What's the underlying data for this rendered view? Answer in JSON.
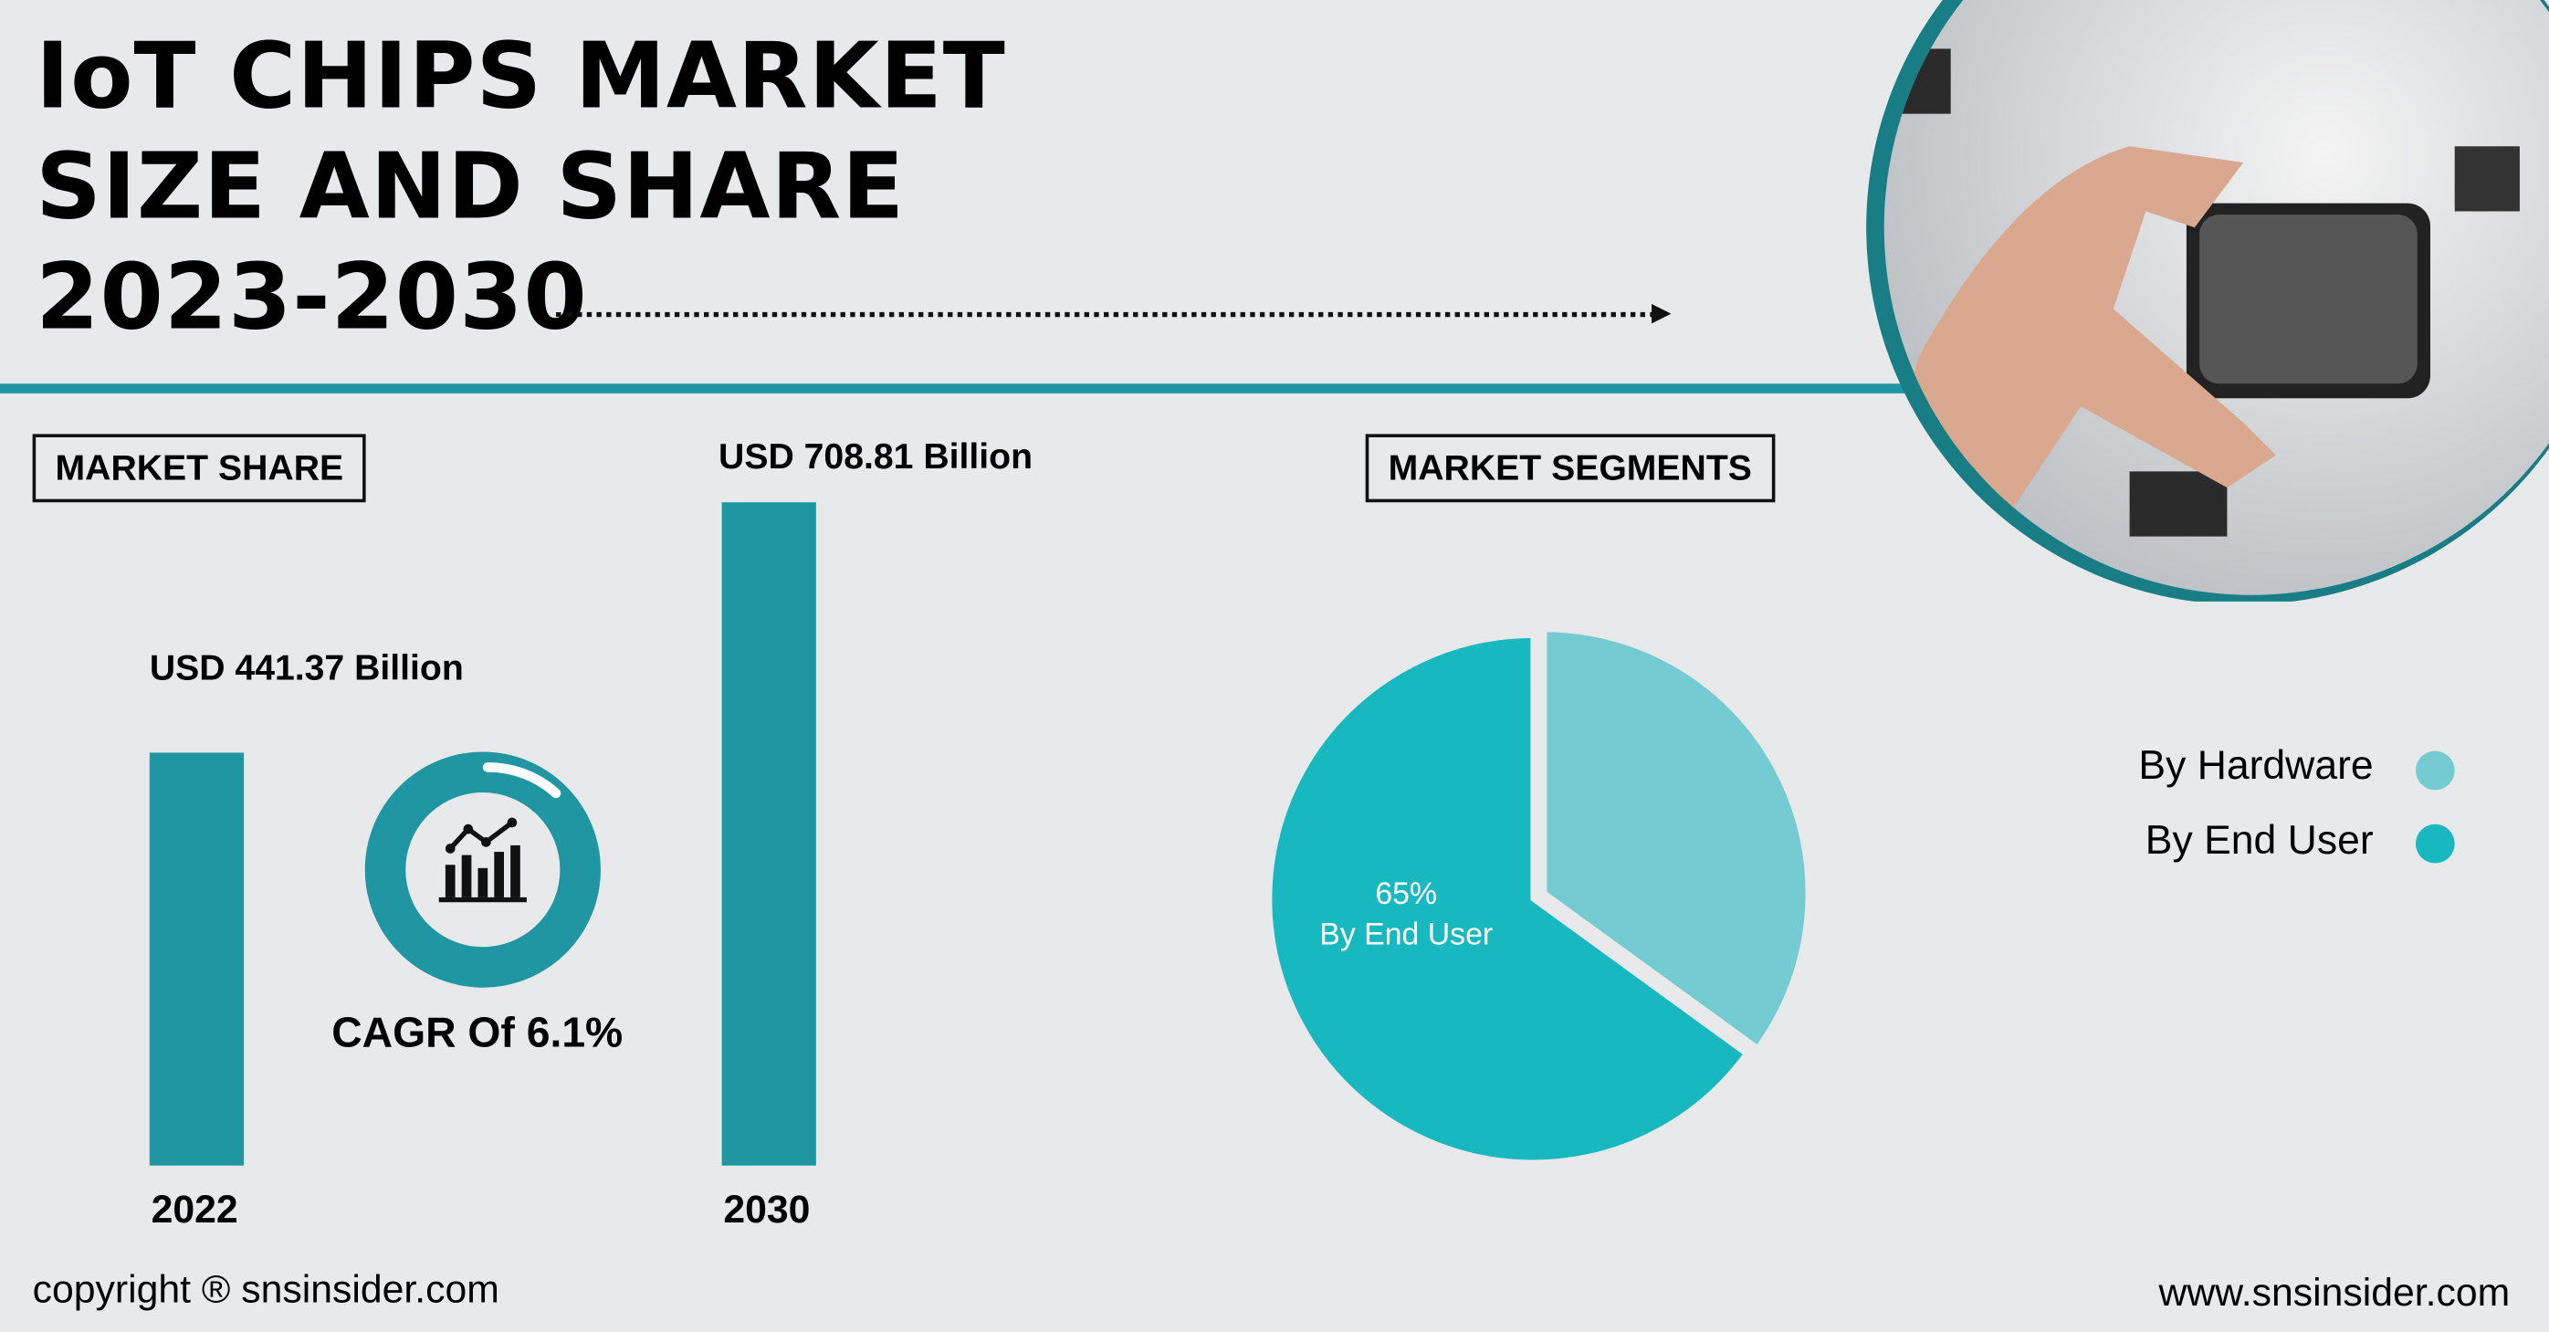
{
  "header": {
    "title_lines": [
      "IoT CHIPS MARKET",
      "SIZE AND SHARE",
      "2023-2030"
    ]
  },
  "market_share": {
    "label": "MARKET SHARE",
    "cagr": "CAGR Of 6.1%",
    "cagr_icon": "chart-growth-icon"
  },
  "market_segments": {
    "label": "MARKET SEGMENTS"
  },
  "footer": {
    "copyright": "copyright ® snsinsider.com",
    "website": "www.snsinsider.com"
  },
  "colors": {
    "accent": "#2096a3",
    "hardware": "#74cbd1",
    "end_user": "#18b8c1",
    "background": "#e8e9eb"
  },
  "chart_data": [
    {
      "type": "bar",
      "categories": [
        "2022",
        "2030"
      ],
      "values": [
        441.37,
        708.81
      ],
      "data_labels": [
        "USD 441.37 Billion",
        "USD 708.81 Billion"
      ],
      "unit": "USD Billion"
    },
    {
      "type": "pie",
      "slices": [
        {
          "name": "By Hardware",
          "value": 35
        },
        {
          "name": "By End User",
          "value": 65
        }
      ],
      "data_label": {
        "value": "65%",
        "text": "By End User"
      },
      "legend": [
        "By Hardware",
        "By End User"
      ],
      "legend_placement": "right"
    }
  ]
}
